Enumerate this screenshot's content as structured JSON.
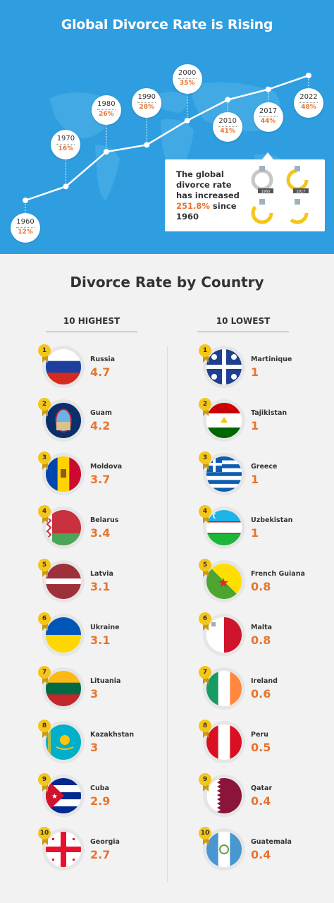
{
  "header": {
    "title": "Global Divorce Rate is Rising"
  },
  "chart_data": {
    "type": "line",
    "title": "Global Divorce Rate is Rising",
    "x": [
      "1960",
      "1970",
      "1980",
      "1990",
      "2000",
      "2010",
      "2017",
      "2022"
    ],
    "values": [
      12,
      16,
      26,
      28,
      35,
      41,
      44,
      48
    ],
    "labels": [
      "12%",
      "16%",
      "26%",
      "28%",
      "35%",
      "41%",
      "44%",
      "48%"
    ],
    "xlabel": "",
    "ylabel": "",
    "grid": false,
    "color": "#ffffff"
  },
  "info": {
    "line1": "The global",
    "line2": "divorce rate",
    "line3": "has increased",
    "highlight": "251.8%",
    "since": "since",
    "year": "1960",
    "ring_label_1": "1960",
    "ring_label_2": "2017"
  },
  "section": {
    "title": "Divorce Rate by Country",
    "highest_label": "10 HIGHEST",
    "lowest_label": "10 LOWEST"
  },
  "highest": [
    {
      "rank": "1",
      "country": "Russia",
      "value": "4.7"
    },
    {
      "rank": "2",
      "country": "Guam",
      "value": "4.2"
    },
    {
      "rank": "3",
      "country": "Moldova",
      "value": "3.7"
    },
    {
      "rank": "4",
      "country": "Belarus",
      "value": "3.4"
    },
    {
      "rank": "5",
      "country": "Latvia",
      "value": "3.1"
    },
    {
      "rank": "6",
      "country": "Ukraine",
      "value": "3.1"
    },
    {
      "rank": "7",
      "country": "Lituania",
      "value": "3"
    },
    {
      "rank": "8",
      "country": "Kazakhstan",
      "value": "3"
    },
    {
      "rank": "9",
      "country": "Cuba",
      "value": "2.9"
    },
    {
      "rank": "10",
      "country": "Georgia",
      "value": "2.7"
    }
  ],
  "lowest": [
    {
      "rank": "1",
      "country": "Martinique",
      "value": "1"
    },
    {
      "rank": "2",
      "country": "Tajikistan",
      "value": "1"
    },
    {
      "rank": "3",
      "country": "Greece",
      "value": "1"
    },
    {
      "rank": "4",
      "country": "Uzbekistan",
      "value": "1"
    },
    {
      "rank": "5",
      "country": "French Guiana",
      "value": "0.8"
    },
    {
      "rank": "6",
      "country": "Malta",
      "value": "0.8"
    },
    {
      "rank": "7",
      "country": "Ireland",
      "value": "0.6"
    },
    {
      "rank": "8",
      "country": "Peru",
      "value": "0.5"
    },
    {
      "rank": "9",
      "country": "Qatar",
      "value": "0.4"
    },
    {
      "rank": "10",
      "country": "Guatemala",
      "value": "0.4"
    }
  ],
  "colors": {
    "accent": "#e8742e",
    "header_bg": "#2f9ee0",
    "medal": "#f5c518"
  }
}
